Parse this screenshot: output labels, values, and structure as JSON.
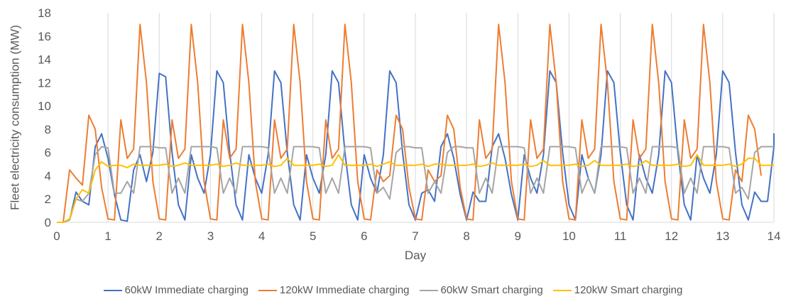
{
  "chart_data": {
    "type": "line",
    "title": "",
    "xlabel": "Day",
    "ylabel": "Fleet electricity consumption (MW)",
    "xlim": [
      0,
      14
    ],
    "ylim": [
      0,
      18
    ],
    "x_ticks": [
      "0",
      "1",
      "2",
      "3",
      "4",
      "5",
      "6",
      "7",
      "8",
      "9",
      "10",
      "11",
      "12",
      "13",
      "14"
    ],
    "y_ticks": [
      "0",
      "2",
      "4",
      "6",
      "8",
      "10",
      "12",
      "14",
      "16",
      "18"
    ],
    "grid": "vertical",
    "legend_position": "bottom",
    "sampled_step_days": 0.125,
    "series": [
      {
        "name": "60kW Immediate charging",
        "color": "#4472C4",
        "values": [
          0,
          0,
          0.2,
          2.6,
          1.8,
          1.5,
          6.5,
          7.6,
          5.5,
          2.4,
          0.2,
          0.1,
          4.5,
          5.8,
          3.5,
          6.0,
          12.8,
          12.5,
          6.0,
          1.5,
          0.2,
          5.8,
          3.8,
          2.5,
          5.8,
          13.0,
          12.0,
          6.0,
          1.5,
          0.2,
          5.8,
          3.8,
          2.5,
          5.8,
          13.0,
          12.0,
          6.0,
          1.5,
          0.2,
          5.8,
          3.8,
          2.5,
          5.8,
          13.0,
          12.0,
          6.0,
          1.5,
          0.2,
          5.8,
          3.8,
          2.5,
          5.8,
          13.0,
          12.0,
          6.0,
          1.5,
          0.2,
          2.5,
          2.8,
          1.8,
          6.5,
          7.6,
          5.5,
          2.4,
          0.2,
          2.6,
          1.8,
          1.8,
          6.5,
          7.6,
          5.5,
          2.4,
          0.2,
          5.8,
          3.8,
          2.5,
          5.8,
          13.0,
          12.0,
          6.0,
          1.5,
          0.2,
          5.8,
          3.8,
          2.5,
          5.8,
          13.0,
          12.0,
          6.0,
          1.5,
          0.2,
          5.8,
          3.8,
          2.5,
          5.8,
          13.0,
          12.0,
          6.0,
          1.5,
          0.2,
          5.8,
          3.8,
          2.5,
          5.8,
          13.0,
          12.0,
          6.0,
          1.5,
          0.2,
          2.6,
          1.8,
          1.8,
          6.5,
          7.6,
          7.3
        ]
      },
      {
        "name": "120kW Immediate charging",
        "color": "#ED7D31",
        "values": [
          0,
          0,
          4.5,
          3.8,
          3.2,
          9.2,
          8.0,
          3.0,
          0.3,
          0.2,
          8.8,
          5.5,
          6.3,
          17.0,
          12.0,
          3.5,
          0.3,
          0.2,
          8.8,
          5.5,
          6.3,
          17.0,
          12.0,
          3.5,
          0.3,
          0.2,
          8.8,
          5.5,
          6.3,
          17.0,
          12.0,
          3.5,
          0.3,
          0.2,
          8.8,
          5.5,
          6.3,
          17.0,
          12.0,
          3.5,
          0.3,
          0.2,
          8.8,
          5.5,
          6.3,
          17.0,
          12.0,
          3.5,
          0.3,
          0.2,
          4.5,
          3.5,
          4.0,
          9.2,
          8.0,
          3.0,
          0.3,
          0.2,
          4.5,
          3.5,
          4.0,
          9.2,
          8.0,
          3.0,
          0.3,
          0.2,
          8.8,
          5.5,
          6.3,
          17.0,
          12.0,
          3.5,
          0.3,
          0.2,
          8.8,
          5.5,
          6.3,
          17.0,
          12.0,
          3.5,
          0.3,
          0.2,
          8.8,
          5.5,
          6.3,
          17.0,
          12.0,
          3.5,
          0.3,
          0.2,
          8.8,
          5.5,
          6.3,
          17.0,
          12.0,
          3.5,
          0.3,
          0.2,
          8.8,
          5.5,
          6.3,
          17.0,
          12.0,
          3.5,
          0.3,
          0.2,
          4.5,
          3.5,
          9.2,
          8.0,
          4.0
        ]
      },
      {
        "name": "60kW Smart charging",
        "color": "#A5A5A5",
        "values": [
          0,
          0,
          0.2,
          2.0,
          1.8,
          2.5,
          5.8,
          6.5,
          6.4,
          2.5,
          2.5,
          3.5,
          2.5,
          6.5,
          6.5,
          6.5,
          6.4,
          6.4,
          2.5,
          3.8,
          2.5,
          6.5,
          6.5,
          6.5,
          6.5,
          6.4,
          2.5,
          3.8,
          2.5,
          6.5,
          6.5,
          6.5,
          6.5,
          6.4,
          2.5,
          3.8,
          2.5,
          6.5,
          6.5,
          6.5,
          6.5,
          6.4,
          2.5,
          3.8,
          2.5,
          6.5,
          6.5,
          6.5,
          6.5,
          6.4,
          2.5,
          3.0,
          2.0,
          6.0,
          6.5,
          6.5,
          6.4,
          6.4,
          2.5,
          3.5,
          2.5,
          6.0,
          6.5,
          6.5,
          6.4,
          6.4,
          2.5,
          3.8,
          2.5,
          6.5,
          6.5,
          6.5,
          6.5,
          6.4,
          2.5,
          3.8,
          2.5,
          6.5,
          6.5,
          6.5,
          6.5,
          6.4,
          2.5,
          3.8,
          2.5,
          6.5,
          6.5,
          6.5,
          6.5,
          6.4,
          2.5,
          3.8,
          2.5,
          6.5,
          6.5,
          6.5,
          6.5,
          6.4,
          2.5,
          3.8,
          2.5,
          6.5,
          6.5,
          6.5,
          6.5,
          6.4,
          2.5,
          3.0,
          2.0,
          6.0,
          6.5,
          6.5,
          6.5
        ]
      },
      {
        "name": "120kW Smart charging",
        "color": "#FFC000",
        "values": [
          0,
          0,
          0.3,
          2.0,
          2.8,
          2.5,
          4.5,
          5.2,
          4.8,
          4.9,
          4.9,
          4.7,
          5.0,
          4.9,
          4.9,
          4.9,
          4.9,
          5.0,
          4.8,
          4.9,
          5.1,
          4.9,
          4.9,
          4.9,
          4.9,
          5.0,
          4.8,
          4.9,
          5.1,
          4.9,
          4.9,
          4.9,
          4.9,
          5.0,
          4.8,
          4.9,
          5.5,
          4.9,
          4.9,
          4.9,
          4.9,
          5.0,
          4.8,
          4.9,
          5.8,
          4.9,
          4.9,
          4.9,
          4.9,
          5.0,
          4.8,
          5.0,
          5.2,
          4.9,
          4.9,
          4.9,
          4.9,
          5.0,
          4.8,
          5.0,
          5.0,
          4.9,
          4.9,
          4.9,
          4.9,
          5.0,
          4.8,
          4.9,
          5.1,
          4.9,
          4.9,
          4.9,
          4.9,
          5.0,
          4.8,
          4.9,
          5.3,
          4.9,
          4.9,
          4.9,
          4.9,
          5.0,
          4.8,
          4.9,
          5.3,
          4.9,
          4.9,
          4.9,
          4.9,
          5.0,
          4.8,
          4.9,
          5.3,
          4.9,
          4.9,
          4.9,
          4.9,
          5.0,
          4.8,
          4.9,
          5.8,
          4.9,
          4.9,
          4.9,
          4.9,
          5.0,
          4.8,
          5.0,
          5.5,
          5.5,
          4.9,
          4.9,
          4.9
        ]
      }
    ]
  }
}
